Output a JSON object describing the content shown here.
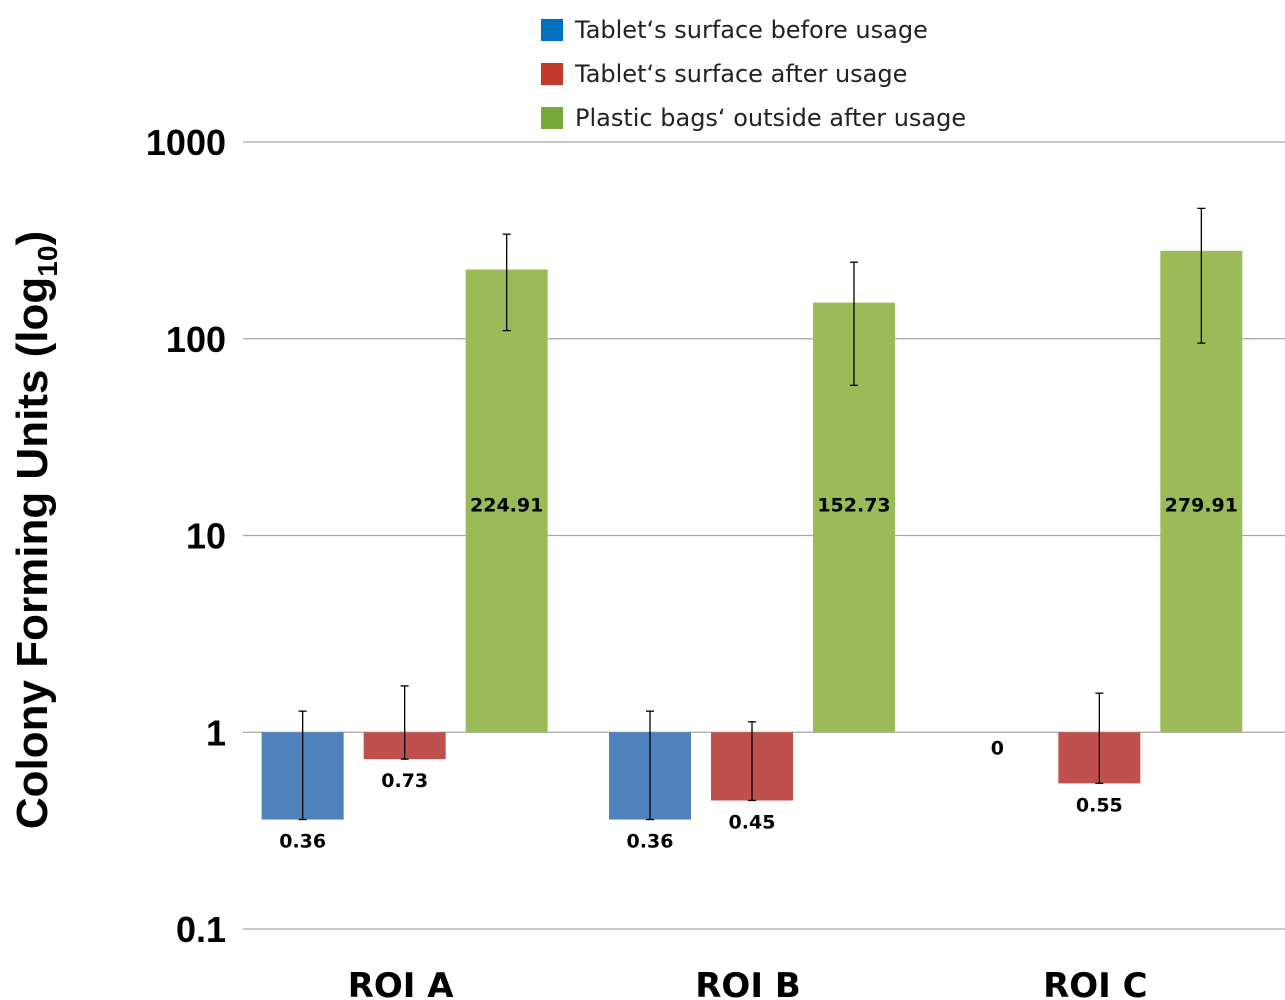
{
  "chart_data": {
    "type": "bar",
    "yscale": "log",
    "ylim": [
      0.1,
      1000
    ],
    "yticks": [
      {
        "value": 0.1,
        "label": "0.1"
      },
      {
        "value": 1,
        "label": "1"
      },
      {
        "value": 10,
        "label": "10"
      },
      {
        "value": 100,
        "label": "100"
      },
      {
        "value": 1000,
        "label": "1000"
      }
    ],
    "baseline": 1,
    "ylabel": "Colony Forming Units (log",
    "ylabel_sub": "10",
    "ylabel_close": ")",
    "grid": true,
    "legend_position": "top",
    "categories": [
      "ROI A",
      "ROI B",
      "ROI C"
    ],
    "series": [
      {
        "name": "Tablet‘s surface before usage",
        "color": "#4f81bd",
        "legend_color": "#0070c0",
        "values": [
          0.36,
          0.36,
          0
        ],
        "labels": [
          "0.36",
          "0.36",
          "0"
        ],
        "error_low": [
          0.36,
          0.36,
          null
        ],
        "error_high": [
          1.28,
          1.28,
          null
        ]
      },
      {
        "name": "Tablet‘s surface after usage",
        "color": "#c0504d",
        "legend_color": "#c0392b",
        "values": [
          0.73,
          0.45,
          0.55
        ],
        "labels": [
          "0.73",
          "0.45",
          "0.55"
        ],
        "error_low": [
          0.73,
          0.45,
          0.55
        ],
        "error_high": [
          1.72,
          1.13,
          1.58
        ]
      },
      {
        "name": "Plastic bags‘ outside after usage",
        "color": "#9bbb59",
        "legend_color": "#77a83a",
        "values": [
          224.91,
          152.73,
          279.91
        ],
        "labels": [
          "224.91",
          "152.73",
          "279.91"
        ],
        "error_low": [
          110,
          58,
          95
        ],
        "error_high": [
          340,
          245,
          460
        ]
      }
    ]
  }
}
